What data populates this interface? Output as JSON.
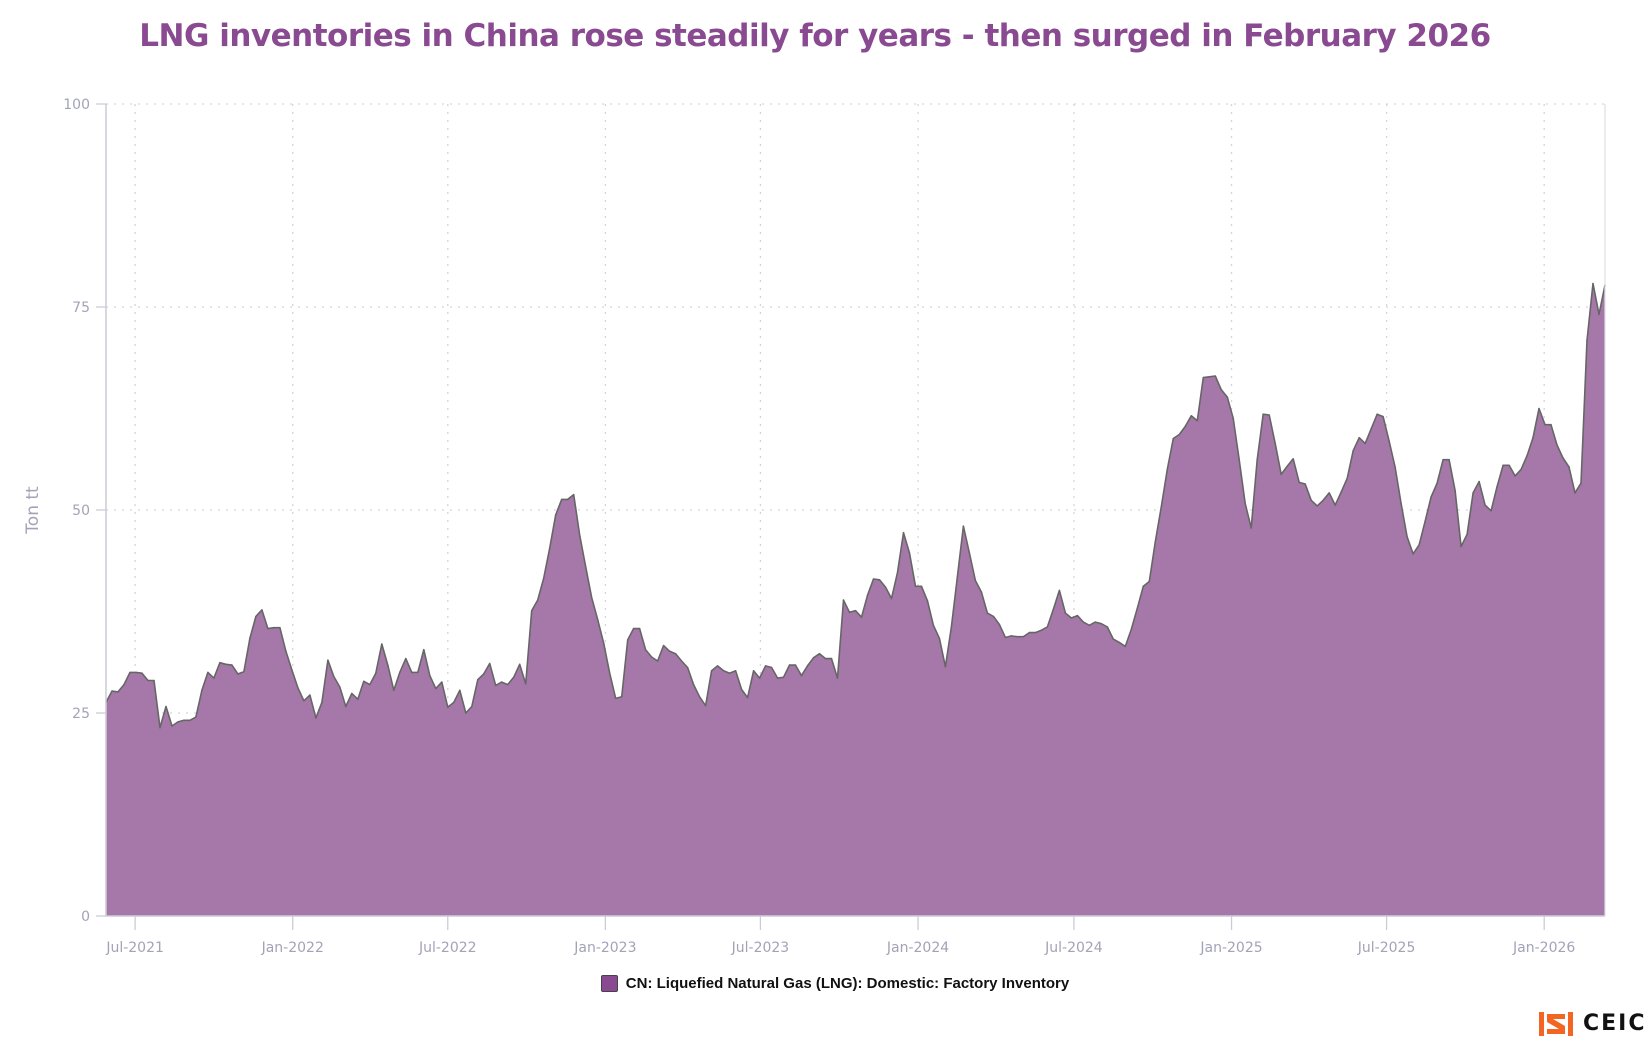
{
  "chart_data": {
    "type": "area",
    "title": "LNG inventories in China rose steadily for years - then surged in February 2026",
    "xlabel": "",
    "ylabel": "Ton tt",
    "ylim": [
      0,
      100
    ],
    "yticks": [
      0,
      25,
      50,
      75,
      100
    ],
    "xticks": [
      {
        "date": "2021-07-01",
        "label": "Jul-2021"
      },
      {
        "date": "2022-01-01",
        "label": "Jan-2022"
      },
      {
        "date": "2022-07-01",
        "label": "Jul-2022"
      },
      {
        "date": "2023-01-01",
        "label": "Jan-2023"
      },
      {
        "date": "2023-07-01",
        "label": "Jul-2023"
      },
      {
        "date": "2024-01-01",
        "label": "Jan-2024"
      },
      {
        "date": "2024-07-01",
        "label": "Jul-2024"
      },
      {
        "date": "2025-01-01",
        "label": "Jan-2025"
      },
      {
        "date": "2025-07-01",
        "label": "Jul-2025"
      },
      {
        "date": "2026-01-01",
        "label": "Jan-2026"
      }
    ],
    "grid": true,
    "legend_position": "bottom-center",
    "colors": {
      "fill": "#a678a9",
      "line": "#666666",
      "title": "#8a4a91",
      "legend_swatch": "#8a4a91"
    },
    "series": [
      {
        "name": "CN: Liquefied Natural Gas (LNG): Domestic: Factory Inventory",
        "x": [
          "2021-05-28",
          "2021-06-04",
          "2021-06-11",
          "2021-06-18",
          "2021-06-25",
          "2021-07-02",
          "2021-07-09",
          "2021-07-16",
          "2021-07-23",
          "2021-07-30",
          "2021-08-06",
          "2021-08-13",
          "2021-08-20",
          "2021-08-27",
          "2021-09-03",
          "2021-09-10",
          "2021-09-17",
          "2021-09-24",
          "2021-10-01",
          "2021-10-08",
          "2021-10-15",
          "2021-10-22",
          "2021-10-29",
          "2021-11-05",
          "2021-11-12",
          "2021-11-19",
          "2021-11-26",
          "2021-12-03",
          "2021-12-10",
          "2021-12-17",
          "2021-12-24",
          "2021-12-31",
          "2022-01-07",
          "2022-01-14",
          "2022-01-21",
          "2022-01-28",
          "2022-02-04",
          "2022-02-11",
          "2022-02-18",
          "2022-02-25",
          "2022-03-04",
          "2022-03-11",
          "2022-03-18",
          "2022-03-25",
          "2022-04-01",
          "2022-04-08",
          "2022-04-15",
          "2022-04-22",
          "2022-04-29",
          "2022-05-06",
          "2022-05-13",
          "2022-05-20",
          "2022-05-27",
          "2022-06-03",
          "2022-06-10",
          "2022-06-17",
          "2022-06-24",
          "2022-07-01",
          "2022-07-08",
          "2022-07-15",
          "2022-07-22",
          "2022-07-29",
          "2022-08-05",
          "2022-08-12",
          "2022-08-19",
          "2022-08-26",
          "2022-09-02",
          "2022-09-09",
          "2022-09-16",
          "2022-09-23",
          "2022-09-30",
          "2022-10-07",
          "2022-10-14",
          "2022-10-21",
          "2022-10-28",
          "2022-11-04",
          "2022-11-11",
          "2022-11-18",
          "2022-11-25",
          "2022-12-02",
          "2022-12-09",
          "2022-12-16",
          "2022-12-23",
          "2022-12-30",
          "2023-01-06",
          "2023-01-13",
          "2023-01-20",
          "2023-01-27",
          "2023-02-03",
          "2023-02-10",
          "2023-02-17",
          "2023-02-24",
          "2023-03-03",
          "2023-03-10",
          "2023-03-17",
          "2023-03-24",
          "2023-03-31",
          "2023-04-07",
          "2023-04-14",
          "2023-04-21",
          "2023-04-28",
          "2023-05-05",
          "2023-05-12",
          "2023-05-19",
          "2023-05-26",
          "2023-06-02",
          "2023-06-09",
          "2023-06-16",
          "2023-06-23",
          "2023-06-30",
          "2023-07-07",
          "2023-07-14",
          "2023-07-21",
          "2023-07-28",
          "2023-08-04",
          "2023-08-11",
          "2023-08-18",
          "2023-08-25",
          "2023-09-01",
          "2023-09-08",
          "2023-09-15",
          "2023-09-22",
          "2023-09-29",
          "2023-10-06",
          "2023-10-13",
          "2023-10-20",
          "2023-10-27",
          "2023-11-03",
          "2023-11-10",
          "2023-11-17",
          "2023-11-24",
          "2023-12-01",
          "2023-12-08",
          "2023-12-15",
          "2023-12-22",
          "2023-12-29",
          "2024-01-05",
          "2024-01-12",
          "2024-01-19",
          "2024-01-26",
          "2024-02-02",
          "2024-02-09",
          "2024-02-16",
          "2024-02-23",
          "2024-03-01",
          "2024-03-08",
          "2024-03-15",
          "2024-03-22",
          "2024-03-29",
          "2024-04-05",
          "2024-04-12",
          "2024-04-19",
          "2024-04-26",
          "2024-05-03",
          "2024-05-10",
          "2024-05-17",
          "2024-05-24",
          "2024-05-31",
          "2024-06-07",
          "2024-06-14",
          "2024-06-21",
          "2024-06-28",
          "2024-07-05",
          "2024-07-12",
          "2024-07-19",
          "2024-07-26",
          "2024-08-02",
          "2024-08-09",
          "2024-08-16",
          "2024-08-23",
          "2024-08-30",
          "2024-09-06",
          "2024-09-13",
          "2024-09-20",
          "2024-09-27",
          "2024-10-04",
          "2024-10-11",
          "2024-10-18",
          "2024-10-25",
          "2024-11-01",
          "2024-11-08",
          "2024-11-15",
          "2024-11-22",
          "2024-11-29",
          "2024-12-06",
          "2024-12-13",
          "2024-12-20",
          "2024-12-27",
          "2025-01-03",
          "2025-01-10",
          "2025-01-17",
          "2025-01-24",
          "2025-01-31",
          "2025-02-07",
          "2025-02-14",
          "2025-02-21",
          "2025-02-28",
          "2025-03-07",
          "2025-03-14",
          "2025-03-21",
          "2025-03-28",
          "2025-04-04",
          "2025-04-11",
          "2025-04-18",
          "2025-04-25",
          "2025-05-02",
          "2025-05-09",
          "2025-05-16",
          "2025-05-23",
          "2025-05-30",
          "2025-06-06",
          "2025-06-13",
          "2025-06-20",
          "2025-06-27",
          "2025-07-04",
          "2025-07-11",
          "2025-07-18",
          "2025-07-25",
          "2025-08-01",
          "2025-08-08",
          "2025-08-15",
          "2025-08-22",
          "2025-08-29",
          "2025-09-05",
          "2025-09-12",
          "2025-09-19",
          "2025-09-26",
          "2025-10-03",
          "2025-10-10",
          "2025-10-17",
          "2025-10-24",
          "2025-10-31",
          "2025-11-07",
          "2025-11-14",
          "2025-11-21",
          "2025-11-28",
          "2025-12-05",
          "2025-12-12",
          "2025-12-19",
          "2025-12-26",
          "2026-01-02",
          "2026-01-09",
          "2026-01-16",
          "2026-01-23",
          "2026-01-30",
          "2026-02-06",
          "2026-02-13",
          "2026-02-20",
          "2026-02-27",
          "2026-03-06",
          "2026-03-13"
        ],
        "values": [
          26.3,
          27.7,
          27.6,
          28.5,
          30.0,
          30.0,
          29.9,
          29.0,
          29.0,
          23.2,
          25.8,
          23.4,
          23.9,
          24.1,
          24.1,
          24.5,
          27.8,
          30.0,
          29.3,
          31.2,
          31.0,
          30.9,
          29.8,
          30.1,
          34.2,
          36.9,
          37.7,
          35.4,
          35.5,
          35.5,
          32.6,
          30.3,
          28.1,
          26.5,
          27.2,
          24.4,
          26.3,
          31.5,
          29.5,
          28.2,
          25.8,
          27.4,
          26.7,
          28.9,
          28.5,
          29.9,
          33.5,
          30.9,
          27.8,
          30.0,
          31.7,
          30.0,
          30.0,
          32.8,
          29.6,
          28.0,
          28.8,
          25.7,
          26.3,
          27.8,
          25.0,
          25.8,
          29.1,
          29.8,
          31.1,
          28.4,
          28.8,
          28.5,
          29.4,
          31.0,
          28.6,
          37.6,
          38.9,
          41.6,
          45.3,
          49.4,
          51.3,
          51.3,
          51.9,
          46.9,
          43.0,
          39.2,
          36.5,
          33.6,
          29.9,
          26.8,
          27.0,
          34.0,
          35.4,
          35.4,
          32.8,
          31.9,
          31.4,
          33.3,
          32.6,
          32.3,
          31.4,
          30.6,
          28.5,
          27.0,
          25.9,
          30.2,
          30.8,
          30.2,
          29.9,
          30.2,
          27.9,
          26.9,
          30.2,
          29.3,
          30.8,
          30.6,
          29.3,
          29.4,
          30.9,
          30.9,
          29.6,
          30.8,
          31.8,
          32.3,
          31.7,
          31.7,
          29.3,
          38.9,
          37.4,
          37.6,
          36.8,
          39.5,
          41.5,
          41.4,
          40.5,
          39.1,
          42.3,
          47.2,
          44.7,
          40.6,
          40.6,
          38.8,
          35.8,
          34.2,
          30.7,
          35.6,
          41.8,
          48.0,
          44.7,
          41.3,
          39.9,
          37.3,
          36.9,
          35.9,
          34.3,
          34.5,
          34.4,
          34.4,
          34.9,
          34.9,
          35.2,
          35.6,
          37.8,
          40.1,
          37.3,
          36.7,
          37.0,
          36.2,
          35.8,
          36.2,
          36.0,
          35.6,
          34.1,
          33.7,
          33.2,
          35.3,
          37.9,
          40.6,
          41.2,
          46.1,
          50.4,
          55.0,
          58.8,
          59.3,
          60.3,
          61.6,
          61.0,
          66.3,
          66.4,
          66.5,
          64.8,
          63.9,
          61.3,
          56.2,
          50.8,
          47.8,
          56.2,
          61.8,
          61.7,
          58.2,
          54.4,
          55.4,
          56.3,
          53.4,
          53.2,
          51.2,
          50.5,
          51.2,
          52.1,
          50.6,
          52.2,
          53.9,
          57.3,
          58.9,
          58.2,
          60.0,
          61.8,
          61.5,
          58.5,
          55.3,
          50.8,
          46.7,
          44.6,
          45.7,
          48.6,
          51.6,
          53.3,
          56.2,
          56.2,
          52.4,
          45.5,
          47.0,
          52.1,
          53.5,
          50.6,
          49.9,
          52.9,
          55.5,
          55.5,
          54.2,
          55.0,
          56.7,
          58.9,
          62.5,
          60.5,
          60.5,
          58.0,
          56.4,
          55.3,
          52.1,
          53.3,
          70.9,
          77.9,
          74.1,
          77.7
        ]
      }
    ]
  },
  "logo": {
    "text": "CEIC",
    "color": "#f26522"
  }
}
